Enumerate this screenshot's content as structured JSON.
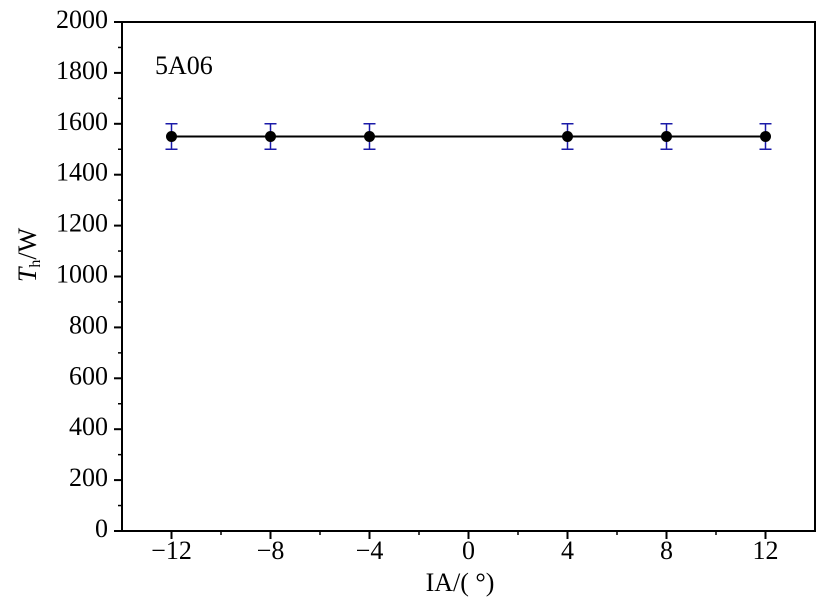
{
  "chart_data": {
    "type": "errorline",
    "annotation": "5A06",
    "xlabel": "IA/( °)",
    "ylabel": [
      "T",
      "h",
      "/W"
    ],
    "x": [
      -12,
      -8,
      -4,
      4,
      8,
      12
    ],
    "series": [
      {
        "color": "#000000",
        "error_color": "#1a1aa8",
        "values": [
          1550,
          1550,
          1550,
          1550,
          1550,
          1550
        ],
        "errors": [
          50,
          50,
          50,
          50,
          50,
          50
        ]
      }
    ],
    "xlim": [
      -14,
      14
    ],
    "xticks": [
      {
        "value": -12,
        "label": "−12"
      },
      {
        "value": -8,
        "label": "−8"
      },
      {
        "value": -4,
        "label": "−4"
      },
      0,
      4,
      8,
      12
    ],
    "xminorticks": [
      -10,
      -6,
      -2,
      2,
      6,
      10
    ],
    "ylim": [
      0,
      2000
    ],
    "yticks": [
      0,
      200,
      400,
      600,
      800,
      1000,
      1200,
      1400,
      1600,
      1800,
      2000
    ],
    "yminorticks": [
      100,
      300,
      500,
      700,
      900,
      1100,
      1300,
      1500,
      1700,
      1900
    ]
  }
}
